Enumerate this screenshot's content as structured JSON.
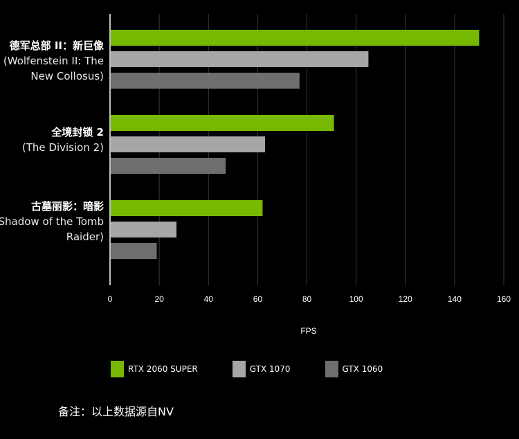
{
  "chart_data": {
    "type": "bar",
    "orientation": "horizontal",
    "categories": [
      {
        "line1": "德军总部 II：新巨像",
        "line2": "(Wolfenstein II: The",
        "line3": "New Collosus)"
      },
      {
        "line1": "全境封锁 2",
        "line2": "(The Division 2)",
        "line3": ""
      },
      {
        "line1": "古墓丽影：暗影",
        "line2": "(Shadow of the Tomb",
        "line3": "Raider)"
      }
    ],
    "series": [
      {
        "name": "RTX 2060 SUPER",
        "color": "#76b900",
        "values": [
          150,
          91,
          62
        ]
      },
      {
        "name": "GTX 1070",
        "color": "#a6a6a6",
        "values": [
          105,
          63,
          27
        ]
      },
      {
        "name": "GTX 1060",
        "color": "#6e6e6e",
        "values": [
          77,
          47,
          19
        ]
      }
    ],
    "xlim": [
      0,
      160
    ],
    "xticks": [
      "0",
      "20",
      "40",
      "60",
      "80",
      "100",
      "120",
      "140",
      "160"
    ],
    "xlabel": "FPS",
    "grid": "vertical",
    "legend_position": "bottom"
  },
  "footnote": "备注：以上数据源自NV"
}
